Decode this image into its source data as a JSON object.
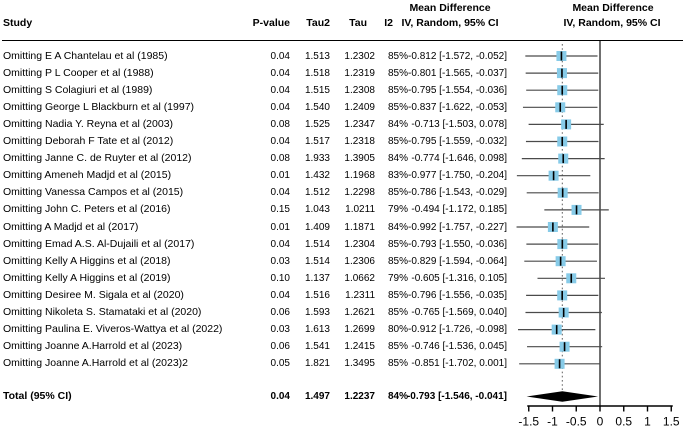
{
  "header": {
    "study": "Study",
    "pvalue": "P-value",
    "tau2": "Tau2",
    "tau": "Tau",
    "i2": "I2",
    "md_label": "Mean Difference",
    "ci_label": "IV, Random, 95% CI"
  },
  "colors": {
    "square": "#87CBE8",
    "ci_line": "#4a4a4a",
    "axis": "#000000",
    "ref_line": "#333333",
    "dotted_line": "#6e6e6e",
    "diamond": "#000000",
    "text": "#000000"
  },
  "chart_data": {
    "type": "forest",
    "effect_measure": "Mean Difference",
    "method": "IV, Random, 95% CI",
    "xlim": [
      -1.5,
      1.5
    ],
    "x_ticks": [
      -1.5,
      -1,
      -0.5,
      0,
      0.5,
      1,
      1.5
    ],
    "x_tick_labels": [
      "-1.5",
      "-1",
      "-0.5",
      "0",
      "0.5",
      "1",
      "1.5"
    ],
    "zero_line": 0,
    "overall_dotted_line": -0.793,
    "studies": [
      {
        "label": "Omitting E A Chantelau et al (1985)",
        "pvalue": "0.04",
        "tau2": "1.513",
        "tau": "1.2302",
        "i2": "85%",
        "est": -0.812,
        "lo": -1.572,
        "hi": -0.052,
        "ci_text": "-0.812 [-1.572, -0.052]"
      },
      {
        "label": "Omitting P L Cooper et al (1988)",
        "pvalue": "0.04",
        "tau2": "1.518",
        "tau": "1.2319",
        "i2": "85%",
        "est": -0.801,
        "lo": -1.565,
        "hi": -0.037,
        "ci_text": "-0.801 [-1.565, -0.037]"
      },
      {
        "label": "Omitting S Colagiuri et al (1989)",
        "pvalue": "0.04",
        "tau2": "1.515",
        "tau": "1.2308",
        "i2": "85%",
        "est": -0.795,
        "lo": -1.554,
        "hi": -0.036,
        "ci_text": "-0.795 [-1.554, -0.036]"
      },
      {
        "label": "Omitting George L Blackburn et al (1997)",
        "pvalue": "0.04",
        "tau2": "1.540",
        "tau": "1.2409",
        "i2": "85%",
        "est": -0.837,
        "lo": -1.622,
        "hi": -0.053,
        "ci_text": "-0.837 [-1.622, -0.053]"
      },
      {
        "label": "Omitting Nadia Y. Reyna et al (2003)",
        "pvalue": "0.08",
        "tau2": "1.525",
        "tau": "1.2347",
        "i2": "84%",
        "est": -0.713,
        "lo": -1.503,
        "hi": 0.078,
        "ci_text": "-0.713 [-1.503, 0.078]"
      },
      {
        "label": "Omitting Deborah F Tate et al (2012)",
        "pvalue": "0.04",
        "tau2": "1.517",
        "tau": "1.2318",
        "i2": "85%",
        "est": -0.795,
        "lo": -1.559,
        "hi": -0.032,
        "ci_text": "-0.795 [-1.559, -0.032]"
      },
      {
        "label": "Omitting Janne C. de Ruyter et al (2012)",
        "pvalue": "0.08",
        "tau2": "1.933",
        "tau": "1.3905",
        "i2": "84%",
        "est": -0.774,
        "lo": -1.646,
        "hi": 0.098,
        "ci_text": "-0.774 [-1.646, 0.098]"
      },
      {
        "label": "Omitting Ameneh Madjd et al (2015)",
        "pvalue": "0.01",
        "tau2": "1.432",
        "tau": "1.1968",
        "i2": "83%",
        "est": -0.977,
        "lo": -1.75,
        "hi": -0.204,
        "ci_text": "-0.977 [-1.750, -0.204]"
      },
      {
        "label": "Omitting Vanessa Campos et al (2015)",
        "pvalue": "0.04",
        "tau2": "1.512",
        "tau": "1.2298",
        "i2": "85%",
        "est": -0.786,
        "lo": -1.543,
        "hi": -0.029,
        "ci_text": "-0.786 [-1.543, -0.029]"
      },
      {
        "label": "Omitting John C. Peters et al (2016)",
        "pvalue": "0.15",
        "tau2": "1.043",
        "tau": "1.0211",
        "i2": "79%",
        "est": -0.494,
        "lo": -1.172,
        "hi": 0.185,
        "ci_text": "-0.494 [-1.172, 0.185]"
      },
      {
        "label": "Omitting A Madjd et al (2017)",
        "pvalue": "0.01",
        "tau2": "1.409",
        "tau": "1.1871",
        "i2": "84%",
        "est": -0.992,
        "lo": -1.757,
        "hi": -0.227,
        "ci_text": "-0.992 [-1.757, -0.227]"
      },
      {
        "label": "Omitting Emad A.S. Al-Dujaili et al (2017)",
        "pvalue": "0.04",
        "tau2": "1.514",
        "tau": "1.2304",
        "i2": "85%",
        "est": -0.793,
        "lo": -1.55,
        "hi": -0.036,
        "ci_text": "-0.793 [-1.550, -0.036]"
      },
      {
        "label": "Omitting Kelly A Higgins et al (2018)",
        "pvalue": "0.03",
        "tau2": "1.514",
        "tau": "1.2306",
        "i2": "85%",
        "est": -0.829,
        "lo": -1.594,
        "hi": -0.064,
        "ci_text": "-0.829 [-1.594, -0.064]"
      },
      {
        "label": "Omitting Kelly A Higgins et al (2019)",
        "pvalue": "0.10",
        "tau2": "1.137",
        "tau": "1.0662",
        "i2": "79%",
        "est": -0.605,
        "lo": -1.316,
        "hi": 0.105,
        "ci_text": "-0.605 [-1.316, 0.105]"
      },
      {
        "label": "Omitting Desiree M. Sigala et al (2020)",
        "pvalue": "0.04",
        "tau2": "1.516",
        "tau": "1.2311",
        "i2": "85%",
        "est": -0.796,
        "lo": -1.556,
        "hi": -0.035,
        "ci_text": "-0.796 [-1.556, -0.035]"
      },
      {
        "label": "Omitting Nikoleta S. Stamataki et al (2020)",
        "pvalue": "0.06",
        "tau2": "1.593",
        "tau": "1.2621",
        "i2": "85%",
        "est": -0.765,
        "lo": -1.569,
        "hi": 0.04,
        "ci_text": "-0.765 [-1.569, 0.040]"
      },
      {
        "label": "Omitting Paulina E. Viveros-Wattya et al (2022)",
        "pvalue": "0.03",
        "tau2": "1.613",
        "tau": "1.2699",
        "i2": "80%",
        "est": -0.912,
        "lo": -1.726,
        "hi": -0.098,
        "ci_text": "-0.912 [-1.726, -0.098]"
      },
      {
        "label": "Omitting Joanne A.Harrold et al (2023)",
        "pvalue": "0.06",
        "tau2": "1.541",
        "tau": "1.2415",
        "i2": "85%",
        "est": -0.746,
        "lo": -1.536,
        "hi": 0.045,
        "ci_text": "-0.746 [-1.536, 0.045]"
      },
      {
        "label": "Omitting Joanne A.Harrold et al (2023)2",
        "pvalue": "0.05",
        "tau2": "1.821",
        "tau": "1.3495",
        "i2": "85%",
        "est": -0.851,
        "lo": -1.702,
        "hi": 0.001,
        "ci_text": "-0.851 [-1.702, 0.001]"
      }
    ],
    "total": {
      "label": "Total (95% CI)",
      "pvalue": "0.04",
      "tau2": "1.497",
      "tau": "1.2237",
      "i2": "84%",
      "est": -0.793,
      "lo": -1.546,
      "hi": -0.041,
      "ci_text": "-0.793 [-1.546, -0.041]"
    }
  }
}
